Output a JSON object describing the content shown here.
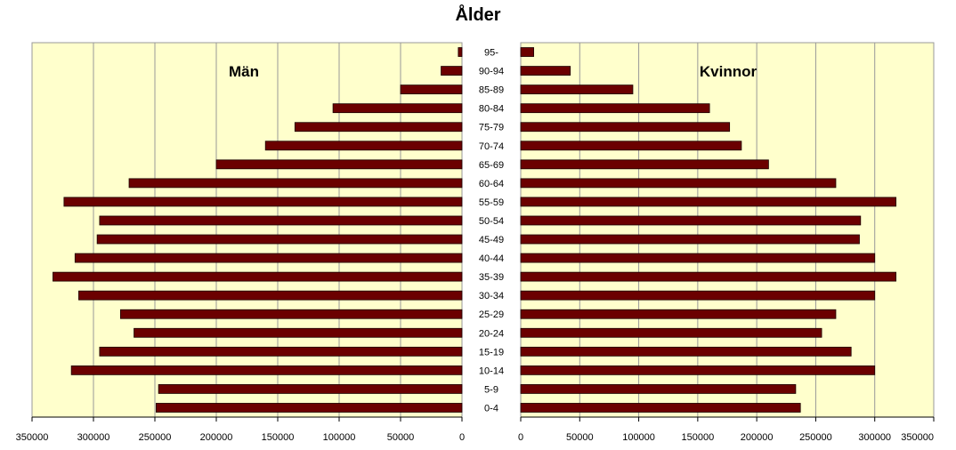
{
  "chart_data": {
    "type": "bar",
    "title": "Ålder",
    "panels": [
      {
        "name": "Män",
        "ylim": [
          0,
          350000
        ]
      },
      {
        "name": "Kvinnor",
        "ylim": [
          0,
          350000
        ]
      }
    ],
    "categories": [
      "0-4",
      "5-9",
      "10-14",
      "15-19",
      "20-24",
      "25-29",
      "30-34",
      "35-39",
      "40-44",
      "45-49",
      "50-54",
      "55-59",
      "60-64",
      "65-69",
      "70-74",
      "75-79",
      "80-84",
      "85-89",
      "90-94",
      "95-"
    ],
    "series": [
      {
        "name": "Män",
        "values": [
          249000,
          247000,
          318000,
          295000,
          267000,
          278000,
          312000,
          333000,
          315000,
          297000,
          295000,
          324000,
          271000,
          200000,
          160000,
          136000,
          105000,
          50000,
          17000,
          3000
        ]
      },
      {
        "name": "Kvinnor",
        "values": [
          237000,
          233000,
          300000,
          280000,
          255000,
          267000,
          300000,
          318000,
          300000,
          287000,
          288000,
          318000,
          267000,
          210000,
          187000,
          177000,
          160000,
          95000,
          42000,
          11000
        ]
      }
    ],
    "xticks_left": [
      "350000",
      "300000",
      "250000",
      "200000",
      "150000",
      "100000",
      "50000",
      "0"
    ],
    "xticks_right": [
      "0",
      "50000",
      "100000",
      "150000",
      "200000",
      "250000",
      "300000",
      "350000"
    ],
    "grid": true,
    "colors": {
      "bar": "#6b0000",
      "bar_edge": "#1a0000",
      "plot_bg": "#ffffcc",
      "grid": "#999999"
    }
  }
}
